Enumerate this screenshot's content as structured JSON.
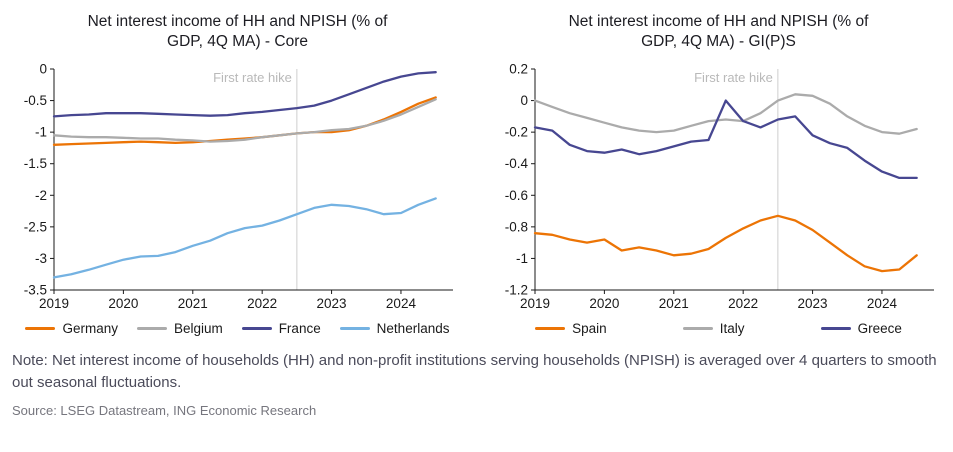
{
  "note": "Note: Net interest income of households (HH) and non-profit institutions serving households (NPISH) is averaged over 4 quarters to smooth out seasonal fluctuations.",
  "source": "Source: LSEG Datastream, ING Economic Research",
  "chart_data": [
    {
      "type": "line",
      "title_line1": "Net interest income of HH and NPISH (% of",
      "title_line2": "GDP, 4Q MA) - Core",
      "xlabel": "",
      "ylabel": "",
      "xlim": [
        2019,
        2024.75
      ],
      "ylim": [
        -3.5,
        0
      ],
      "x_start": 2019,
      "x_step": 0.25,
      "xtick_values": [
        2019,
        2020,
        2021,
        2022,
        2023,
        2024
      ],
      "xtick_labels": [
        "2019",
        "2020",
        "2021",
        "2022",
        "2023",
        "2024"
      ],
      "ytick_values": [
        0,
        -0.5,
        -1,
        -1.5,
        -2,
        -2.5,
        -3,
        -3.5
      ],
      "ytick_labels": [
        "0",
        "-0.5",
        "-1",
        "-1.5",
        "-2",
        "-2.5",
        "-3",
        "-3.5"
      ],
      "grid": false,
      "legend_position": "bottom",
      "annotation": {
        "x": 2022.5,
        "label": "First rate hike",
        "color": "#b9b9b9"
      },
      "series": [
        {
          "name": "Germany",
          "color": "#ec7405",
          "values": [
            -1.2,
            -1.19,
            -1.18,
            -1.17,
            -1.16,
            -1.15,
            -1.16,
            -1.17,
            -1.16,
            -1.14,
            -1.12,
            -1.1,
            -1.08,
            -1.05,
            -1.02,
            -1.0,
            -1.0,
            -0.97,
            -0.9,
            -0.8,
            -0.68,
            -0.55,
            -0.45
          ]
        },
        {
          "name": "Belgium",
          "color": "#ababab",
          "values": [
            -1.05,
            -1.07,
            -1.08,
            -1.08,
            -1.09,
            -1.1,
            -1.1,
            -1.12,
            -1.13,
            -1.15,
            -1.14,
            -1.12,
            -1.08,
            -1.05,
            -1.02,
            -1.0,
            -0.97,
            -0.95,
            -0.9,
            -0.82,
            -0.72,
            -0.6,
            -0.48
          ]
        },
        {
          "name": "France",
          "color": "#474791",
          "values": [
            -0.75,
            -0.73,
            -0.72,
            -0.7,
            -0.7,
            -0.7,
            -0.71,
            -0.72,
            -0.73,
            -0.74,
            -0.73,
            -0.7,
            -0.68,
            -0.65,
            -0.62,
            -0.58,
            -0.5,
            -0.4,
            -0.3,
            -0.2,
            -0.12,
            -0.07,
            -0.05
          ]
        },
        {
          "name": "Netherlands",
          "color": "#74b2e2",
          "values": [
            -3.3,
            -3.25,
            -3.18,
            -3.1,
            -3.02,
            -2.97,
            -2.96,
            -2.9,
            -2.8,
            -2.72,
            -2.6,
            -2.52,
            -2.48,
            -2.4,
            -2.3,
            -2.2,
            -2.15,
            -2.17,
            -2.22,
            -2.3,
            -2.28,
            -2.15,
            -2.05
          ]
        }
      ]
    },
    {
      "type": "line",
      "title_line1": "Net interest income of HH and NPISH (% of",
      "title_line2": "GDP, 4Q MA) - GI(P)S",
      "xlabel": "",
      "ylabel": "",
      "xlim": [
        2019,
        2024.75
      ],
      "ylim": [
        -1.2,
        0.2
      ],
      "x_start": 2019,
      "x_step": 0.25,
      "xtick_values": [
        2019,
        2020,
        2021,
        2022,
        2023,
        2024
      ],
      "xtick_labels": [
        "2019",
        "2020",
        "2021",
        "2022",
        "2023",
        "2024"
      ],
      "ytick_values": [
        0.2,
        0,
        -0.2,
        -0.4,
        -0.6,
        -0.8,
        -1,
        -1.2
      ],
      "ytick_labels": [
        "0.2",
        "0",
        "-0.2",
        "-0.4",
        "-0.6",
        "-0.8",
        "-1",
        "-1.2"
      ],
      "grid": false,
      "legend_position": "bottom",
      "annotation": {
        "x": 2022.5,
        "label": "First rate hike",
        "color": "#b9b9b9"
      },
      "series": [
        {
          "name": "Spain",
          "color": "#ec7405",
          "values": [
            -0.84,
            -0.85,
            -0.88,
            -0.9,
            -0.88,
            -0.95,
            -0.93,
            -0.95,
            -0.98,
            -0.97,
            -0.94,
            -0.87,
            -0.81,
            -0.76,
            -0.73,
            -0.76,
            -0.82,
            -0.9,
            -0.98,
            -1.05,
            -1.08,
            -1.07,
            -0.98
          ]
        },
        {
          "name": "Italy",
          "color": "#ababab",
          "values": [
            0.0,
            -0.04,
            -0.08,
            -0.11,
            -0.14,
            -0.17,
            -0.19,
            -0.2,
            -0.19,
            -0.16,
            -0.13,
            -0.12,
            -0.13,
            -0.08,
            0.0,
            0.04,
            0.03,
            -0.02,
            -0.1,
            -0.16,
            -0.2,
            -0.21,
            -0.18
          ]
        },
        {
          "name": "Greece",
          "color": "#474791",
          "values": [
            -0.17,
            -0.19,
            -0.28,
            -0.32,
            -0.33,
            -0.31,
            -0.34,
            -0.32,
            -0.29,
            -0.26,
            -0.25,
            0.0,
            -0.13,
            -0.17,
            -0.12,
            -0.1,
            -0.22,
            -0.27,
            -0.3,
            -0.38,
            -0.45,
            -0.49,
            -0.49
          ]
        }
      ]
    }
  ]
}
